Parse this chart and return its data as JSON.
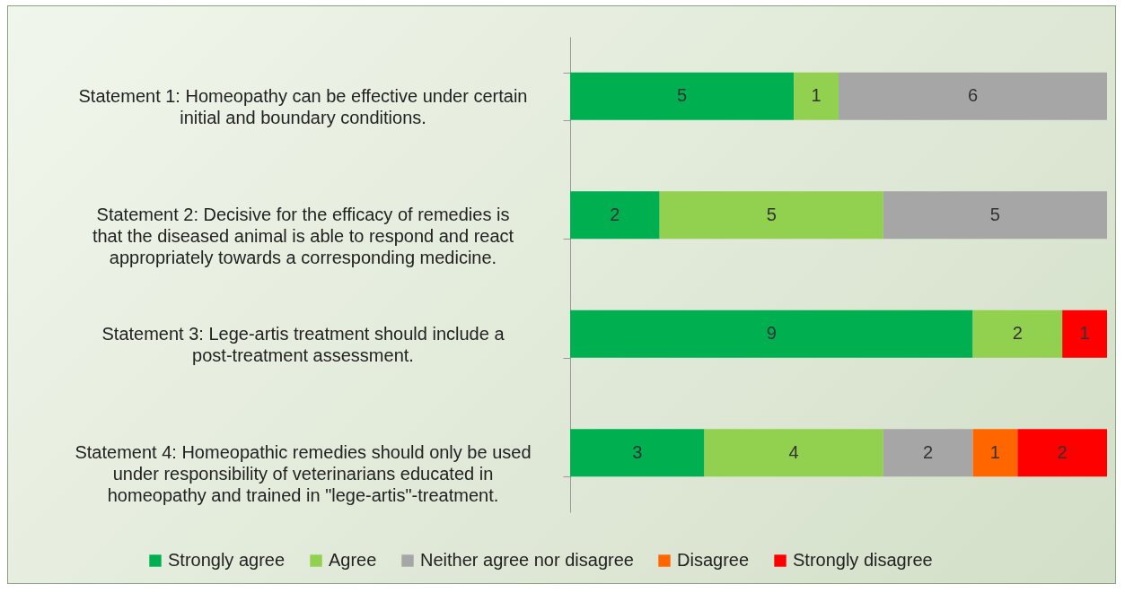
{
  "chart_data": {
    "type": "bar",
    "orientation": "horizontal",
    "stacked": true,
    "data_labels": true,
    "legend": "bottom",
    "categories": [
      "Statement 1: Homeopathy can be effective under certain initial and boundary conditions.",
      "Statement 2: Decisive for the efficacy of remedies is that the diseased animal is able to respond and react appropriately towards a corresponding medicine.",
      "Statement 3: Lege-artis treatment should include a post-treatment assessment.",
      "Statement 4: Homeopathic remedies should only be used under responsibility of veterinarians educated in homeopathy and trained in \"lege-artis\"-treatment."
    ],
    "series": [
      {
        "name": "Strongly agree",
        "color": "#00b050",
        "values": [
          5,
          2,
          9,
          3
        ]
      },
      {
        "name": "Agree",
        "color": "#92d050",
        "values": [
          1,
          5,
          2,
          4
        ]
      },
      {
        "name": "Neither agree nor disagree",
        "color": "#a6a6a6",
        "values": [
          6,
          5,
          null,
          2
        ]
      },
      {
        "name": "Disagree",
        "color": "#ff6600",
        "values": [
          null,
          null,
          null,
          1
        ]
      },
      {
        "name": "Strongly disagree",
        "color": "#ff0000",
        "values": [
          null,
          null,
          1,
          2
        ]
      }
    ]
  }
}
